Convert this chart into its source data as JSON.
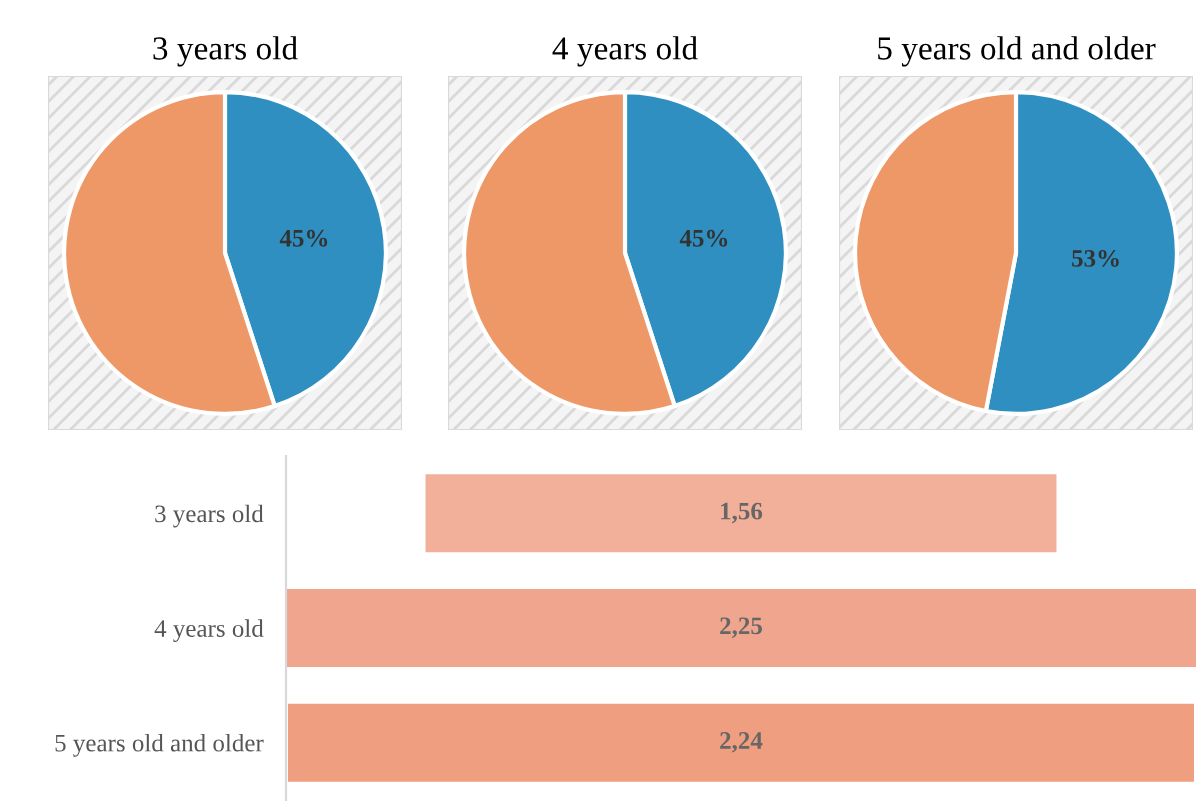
{
  "chart_data": [
    {
      "type": "pie",
      "title": "3 years old",
      "categories": [
        null,
        null
      ],
      "values": [
        45,
        55
      ],
      "colors": [
        "#2f8fc0",
        "#ee9868"
      ],
      "value_labels": [
        "45%",
        null
      ]
    },
    {
      "type": "pie",
      "title": "4 years old",
      "categories": [
        null,
        null
      ],
      "values": [
        45,
        55
      ],
      "colors": [
        "#2f8fc0",
        "#ee9868"
      ],
      "value_labels": [
        "45%",
        null
      ]
    },
    {
      "type": "pie",
      "title": "5 years old and older",
      "categories": [
        null,
        null
      ],
      "values": [
        53,
        47
      ],
      "colors": [
        "#2f8fc0",
        "#ee9868"
      ],
      "value_labels": [
        "53%",
        null
      ]
    },
    {
      "type": "other",
      "categories": [
        "3 years old",
        "4 years old",
        "5 years old and older"
      ],
      "values": [
        1.56,
        2.25,
        2.24
      ],
      "colors": [
        "#f2b09a",
        "#f0a68e",
        "#ef9f80"
      ],
      "value_labels": [
        "1,56",
        "2,25",
        "2,24"
      ]
    }
  ]
}
